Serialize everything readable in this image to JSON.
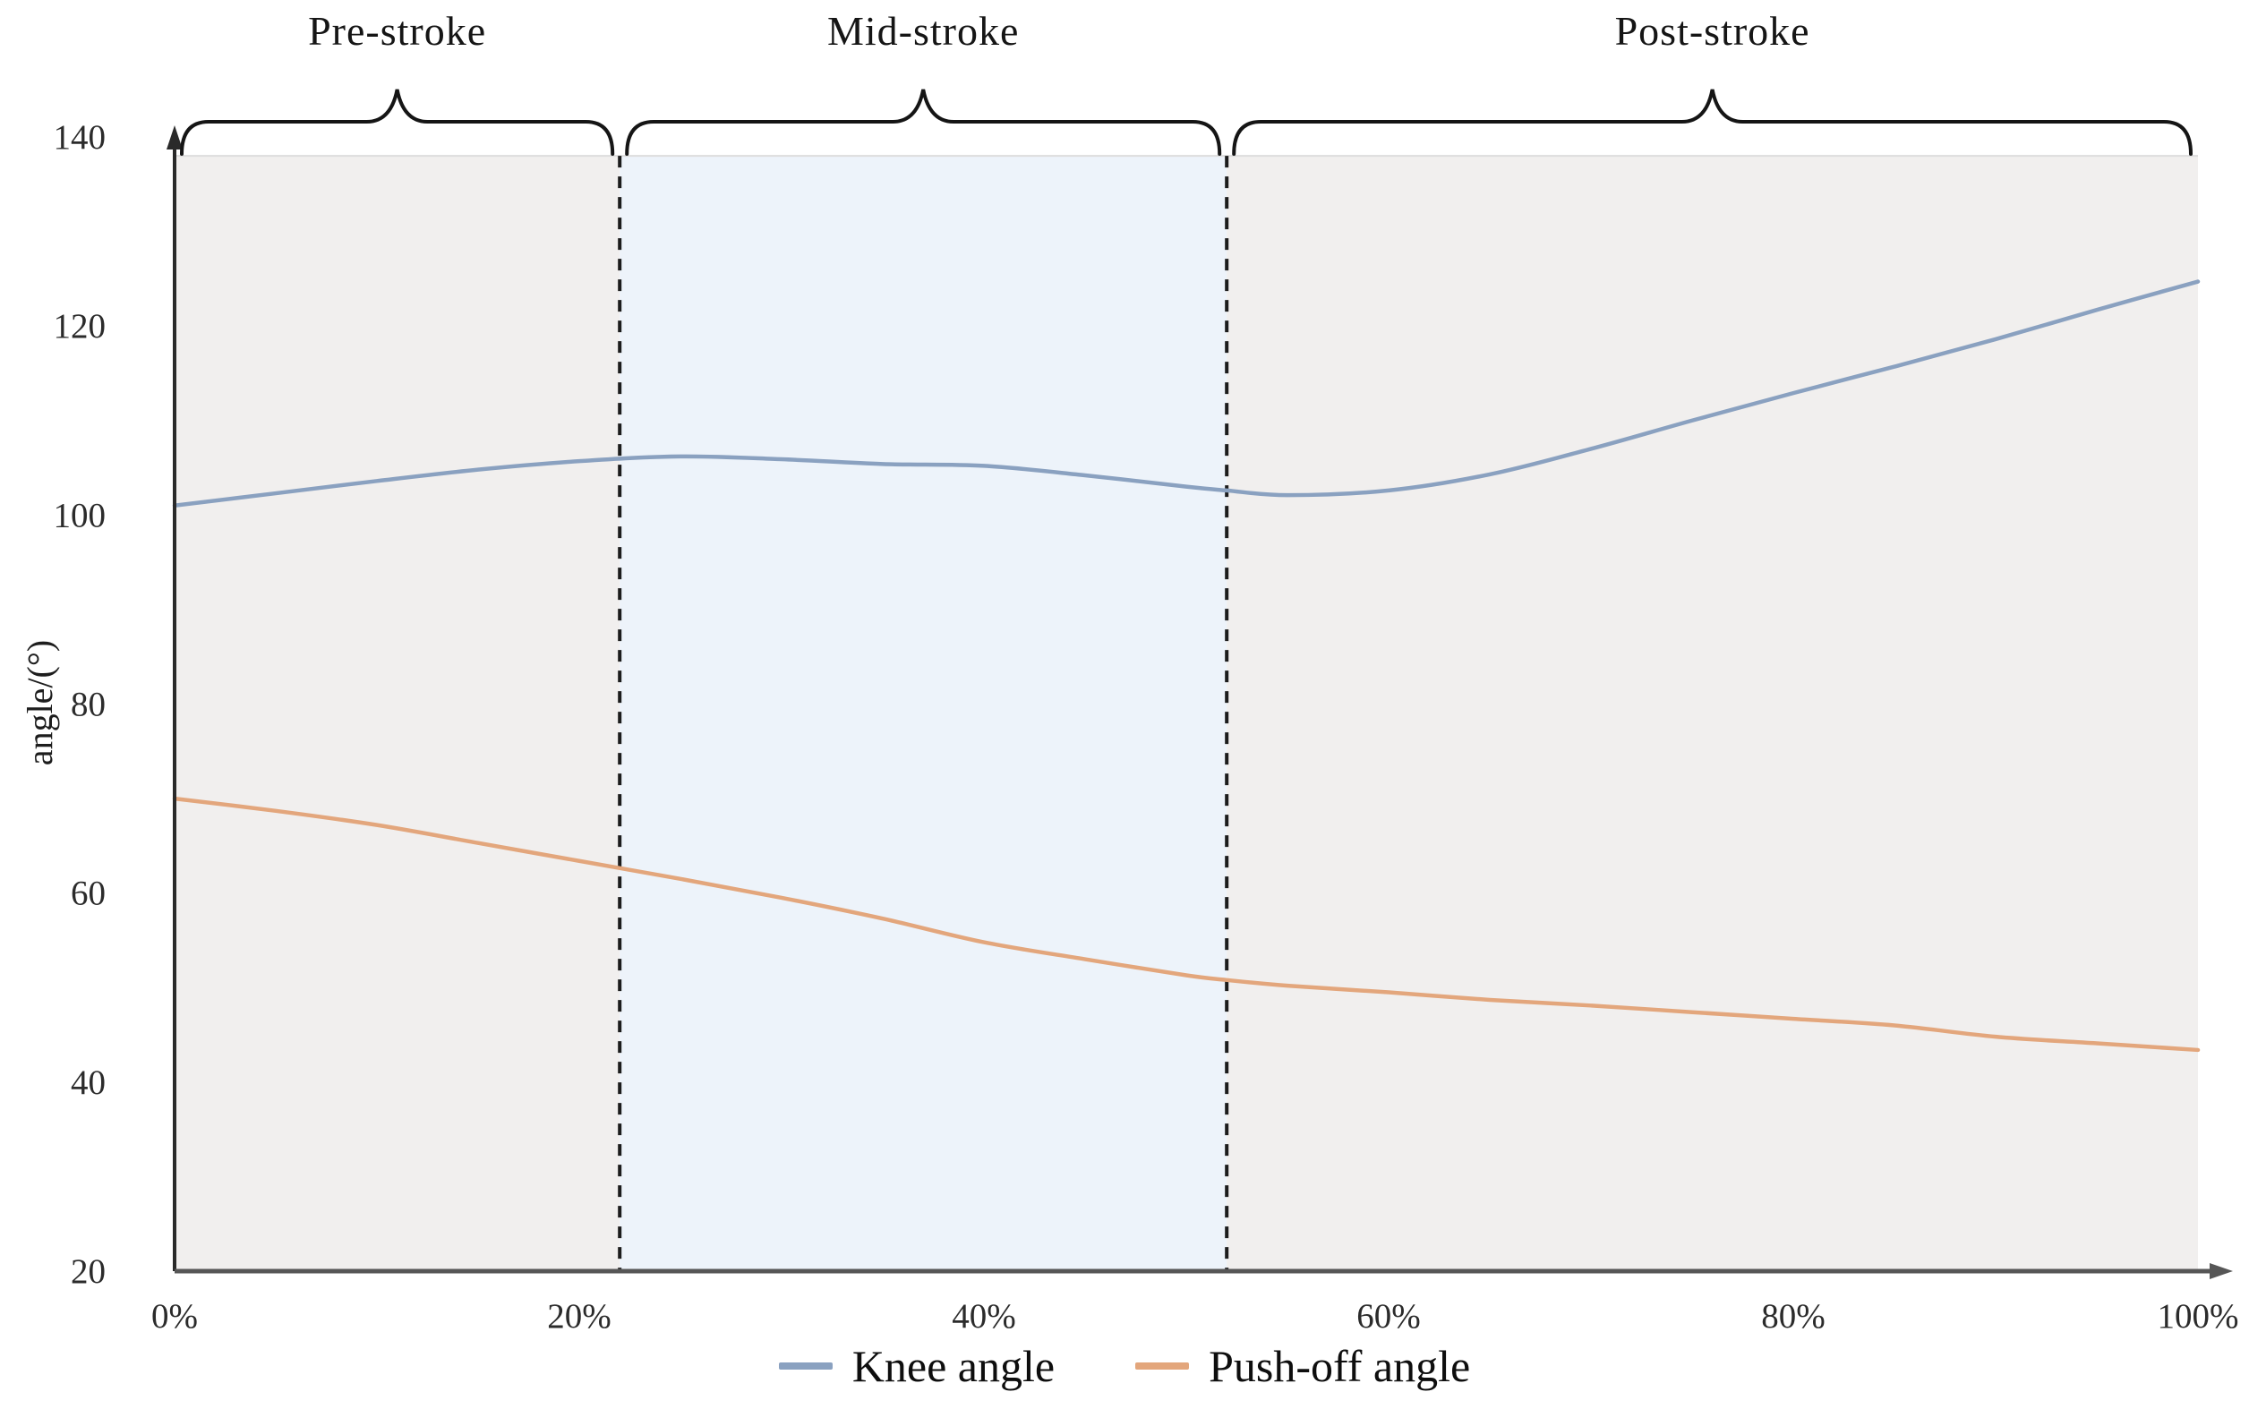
{
  "chart_data": {
    "type": "line",
    "title": "",
    "xlabel": "",
    "ylabel": "angle/(°)",
    "xlim": [
      0,
      100
    ],
    "ylim": [
      20,
      140
    ],
    "band_top": 138,
    "grid": false,
    "legend_position": "bottom",
    "x_ticks": [
      {
        "value": 0,
        "label": "0%"
      },
      {
        "value": 20,
        "label": "20%"
      },
      {
        "value": 40,
        "label": "40%"
      },
      {
        "value": 60,
        "label": "60%"
      },
      {
        "value": 80,
        "label": "80%"
      },
      {
        "value": 100,
        "label": "100%"
      }
    ],
    "y_ticks": [
      140,
      120,
      100,
      80,
      60,
      40,
      20
    ],
    "phases": [
      {
        "label": "Pre-stroke",
        "start": 0,
        "end": 22,
        "fill": "#f1efee"
      },
      {
        "label": "Mid-stroke",
        "start": 22,
        "end": 52,
        "fill": "#edf3fa"
      },
      {
        "label": "Post-stroke",
        "start": 52,
        "end": 100,
        "fill": "#f1efee"
      }
    ],
    "dashed_lines": [
      22,
      52
    ],
    "dashed_line_color": "#1c1c1c",
    "axis_color": "#2a2a2a",
    "x_axis_color": "#565656",
    "brace_color": "#151515",
    "series": [
      {
        "name": "Knee angle",
        "color": "#8aa1c0",
        "points": [
          [
            0,
            101.0
          ],
          [
            5,
            102.3
          ],
          [
            10,
            103.6
          ],
          [
            15,
            104.8
          ],
          [
            20,
            105.7
          ],
          [
            25,
            106.2
          ],
          [
            30,
            105.9
          ],
          [
            35,
            105.4
          ],
          [
            40,
            105.2
          ],
          [
            45,
            104.2
          ],
          [
            50,
            103.0
          ],
          [
            52,
            102.6
          ],
          [
            55,
            102.1
          ],
          [
            60,
            102.6
          ],
          [
            65,
            104.3
          ],
          [
            70,
            107.0
          ],
          [
            75,
            110.0
          ],
          [
            80,
            112.9
          ],
          [
            85,
            115.7
          ],
          [
            90,
            118.6
          ],
          [
            95,
            121.7
          ],
          [
            100,
            124.7
          ]
        ]
      },
      {
        "name": "Push-off angle",
        "color": "#e3a67c",
        "points": [
          [
            0,
            70.0
          ],
          [
            5,
            68.7
          ],
          [
            10,
            67.2
          ],
          [
            15,
            65.3
          ],
          [
            20,
            63.4
          ],
          [
            25,
            61.5
          ],
          [
            30,
            59.5
          ],
          [
            35,
            57.3
          ],
          [
            40,
            54.8
          ],
          [
            45,
            53.0
          ],
          [
            50,
            51.3
          ],
          [
            52,
            50.8
          ],
          [
            55,
            50.2
          ],
          [
            60,
            49.5
          ],
          [
            65,
            48.7
          ],
          [
            70,
            48.1
          ],
          [
            75,
            47.4
          ],
          [
            80,
            46.7
          ],
          [
            85,
            46.0
          ],
          [
            90,
            44.8
          ],
          [
            95,
            44.1
          ],
          [
            100,
            43.4
          ]
        ]
      }
    ]
  }
}
